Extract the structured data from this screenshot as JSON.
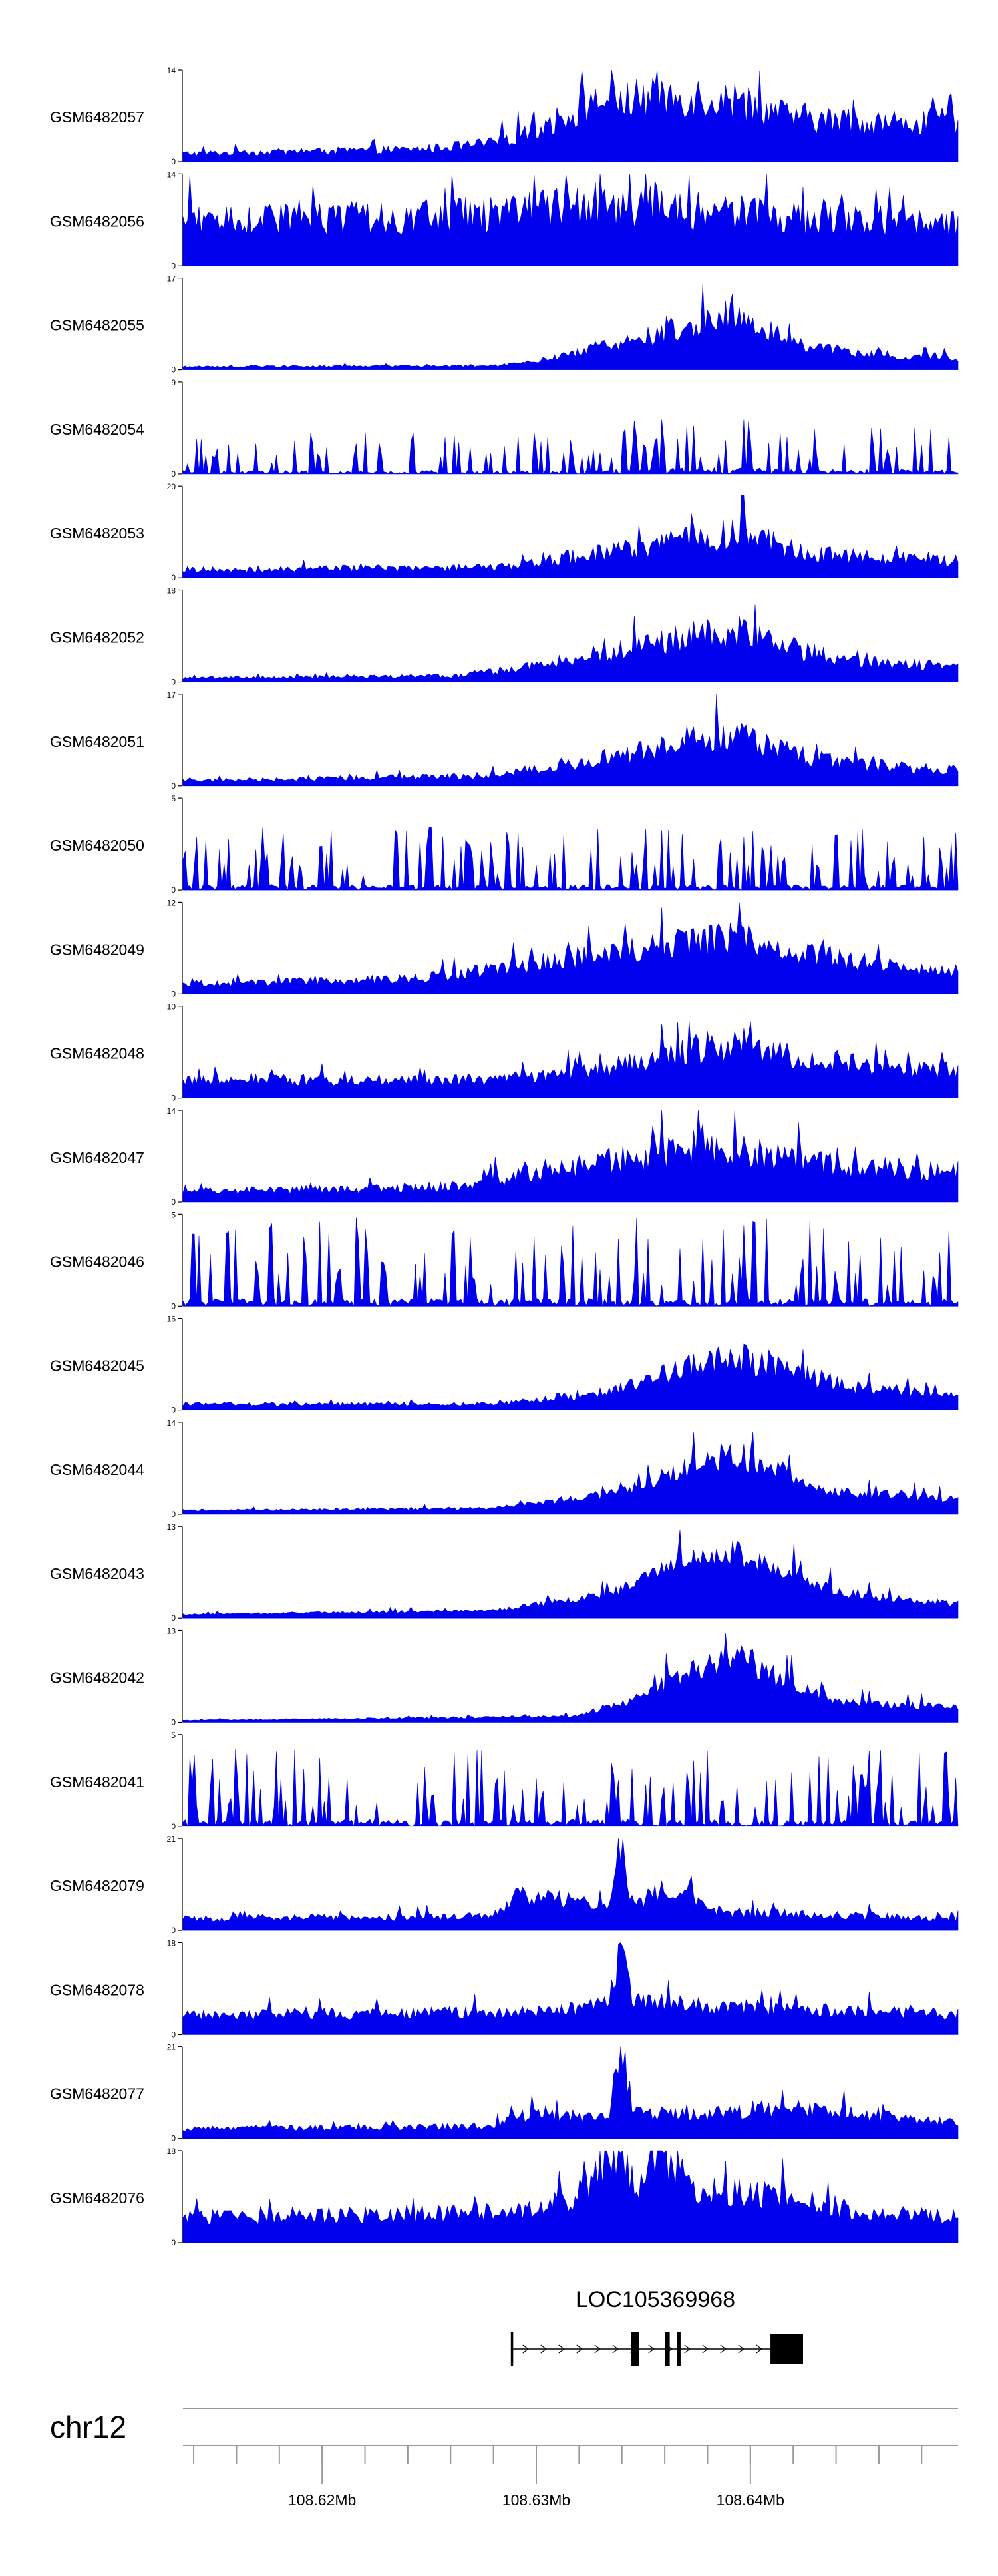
{
  "chart_data": {
    "type": "area",
    "title": "",
    "track_color": "#0000ee",
    "tracks": [
      {
        "name": "GSM6482057",
        "ymax": 14,
        "ymin": 0,
        "profile": [
          [
            0.0,
            0.08
          ],
          [
            0.15,
            0.1
          ],
          [
            0.3,
            0.12
          ],
          [
            0.4,
            0.18
          ],
          [
            0.48,
            0.4
          ],
          [
            0.52,
            0.55
          ],
          [
            0.56,
            0.6
          ],
          [
            0.6,
            0.62
          ],
          [
            0.66,
            0.65
          ],
          [
            0.72,
            0.58
          ],
          [
            0.78,
            0.45
          ],
          [
            0.84,
            0.4
          ],
          [
            0.92,
            0.38
          ],
          [
            1.0,
            0.4
          ]
        ],
        "noise": 0.55
      },
      {
        "name": "GSM6482056",
        "ymax": 14,
        "ymin": 0,
        "profile": [
          [
            0.0,
            0.45
          ],
          [
            0.2,
            0.45
          ],
          [
            0.4,
            0.5
          ],
          [
            0.55,
            0.6
          ],
          [
            0.65,
            0.55
          ],
          [
            0.8,
            0.45
          ],
          [
            1.0,
            0.4
          ]
        ],
        "noise": 0.6
      },
      {
        "name": "GSM6482055",
        "ymax": 17,
        "ymin": 0,
        "profile": [
          [
            0.0,
            0.03
          ],
          [
            0.4,
            0.04
          ],
          [
            0.45,
            0.08
          ],
          [
            0.52,
            0.2
          ],
          [
            0.6,
            0.32
          ],
          [
            0.66,
            0.45
          ],
          [
            0.7,
            0.55
          ],
          [
            0.74,
            0.45
          ],
          [
            0.8,
            0.25
          ],
          [
            0.88,
            0.15
          ],
          [
            1.0,
            0.12
          ]
        ],
        "noise": 0.45
      },
      {
        "name": "GSM6482054",
        "ymax": 9,
        "ymin": 0,
        "profile": [
          [
            0.0,
            0.15
          ],
          [
            0.5,
            0.18
          ],
          [
            0.7,
            0.3
          ],
          [
            0.8,
            0.22
          ],
          [
            1.0,
            0.18
          ]
        ],
        "noise": 1.2,
        "sparse": true
      },
      {
        "name": "GSM6482053",
        "ymax": 20,
        "ymin": 0,
        "profile": [
          [
            0.0,
            0.08
          ],
          [
            0.4,
            0.1
          ],
          [
            0.55,
            0.25
          ],
          [
            0.68,
            0.4
          ],
          [
            0.72,
            0.45
          ],
          [
            0.8,
            0.25
          ],
          [
            1.0,
            0.15
          ]
        ],
        "noise": 0.6
      },
      {
        "name": "GSM6482052",
        "ymax": 18,
        "ymin": 0,
        "profile": [
          [
            0.0,
            0.04
          ],
          [
            0.35,
            0.06
          ],
          [
            0.45,
            0.15
          ],
          [
            0.55,
            0.3
          ],
          [
            0.66,
            0.45
          ],
          [
            0.72,
            0.5
          ],
          [
            0.8,
            0.3
          ],
          [
            0.9,
            0.18
          ],
          [
            1.0,
            0.15
          ]
        ],
        "noise": 0.55
      },
      {
        "name": "GSM6482051",
        "ymax": 17,
        "ymin": 0,
        "profile": [
          [
            0.0,
            0.05
          ],
          [
            0.4,
            0.1
          ],
          [
            0.5,
            0.22
          ],
          [
            0.6,
            0.35
          ],
          [
            0.7,
            0.5
          ],
          [
            0.75,
            0.4
          ],
          [
            0.85,
            0.22
          ],
          [
            1.0,
            0.15
          ]
        ],
        "noise": 0.55
      },
      {
        "name": "GSM6482050",
        "ymax": 5,
        "ymin": 0,
        "profile": [
          [
            0.0,
            0.25
          ],
          [
            0.5,
            0.25
          ],
          [
            1.0,
            0.25
          ]
        ],
        "noise": 1.3,
        "sparse": true
      },
      {
        "name": "GSM6482049",
        "ymax": 12,
        "ymin": 0,
        "profile": [
          [
            0.0,
            0.1
          ],
          [
            0.3,
            0.15
          ],
          [
            0.45,
            0.3
          ],
          [
            0.6,
            0.45
          ],
          [
            0.7,
            0.55
          ],
          [
            0.78,
            0.45
          ],
          [
            0.9,
            0.28
          ],
          [
            1.0,
            0.22
          ]
        ],
        "noise": 0.5
      },
      {
        "name": "GSM6482048",
        "ymax": 10,
        "ymin": 0,
        "profile": [
          [
            0.0,
            0.18
          ],
          [
            0.4,
            0.18
          ],
          [
            0.55,
            0.3
          ],
          [
            0.65,
            0.45
          ],
          [
            0.72,
            0.55
          ],
          [
            0.8,
            0.4
          ],
          [
            0.9,
            0.3
          ],
          [
            1.0,
            0.28
          ]
        ],
        "noise": 0.5
      },
      {
        "name": "GSM6482047",
        "ymax": 14,
        "ymin": 0,
        "profile": [
          [
            0.0,
            0.1
          ],
          [
            0.35,
            0.15
          ],
          [
            0.45,
            0.3
          ],
          [
            0.55,
            0.4
          ],
          [
            0.66,
            0.55
          ],
          [
            0.72,
            0.5
          ],
          [
            0.85,
            0.35
          ],
          [
            1.0,
            0.3
          ]
        ],
        "noise": 0.55
      },
      {
        "name": "GSM6482046",
        "ymax": 5,
        "ymin": 0,
        "profile": [
          [
            0.0,
            0.35
          ],
          [
            0.5,
            0.35
          ],
          [
            1.0,
            0.35
          ]
        ],
        "noise": 1.0,
        "sparse": true
      },
      {
        "name": "GSM6482045",
        "ymax": 16,
        "ymin": 0,
        "profile": [
          [
            0.0,
            0.06
          ],
          [
            0.4,
            0.06
          ],
          [
            0.55,
            0.18
          ],
          [
            0.62,
            0.35
          ],
          [
            0.7,
            0.55
          ],
          [
            0.75,
            0.45
          ],
          [
            0.85,
            0.25
          ],
          [
            1.0,
            0.15
          ]
        ],
        "noise": 0.5
      },
      {
        "name": "GSM6482044",
        "ymax": 14,
        "ymin": 0,
        "profile": [
          [
            0.0,
            0.04
          ],
          [
            0.4,
            0.06
          ],
          [
            0.55,
            0.2
          ],
          [
            0.65,
            0.45
          ],
          [
            0.7,
            0.6
          ],
          [
            0.76,
            0.5
          ],
          [
            0.82,
            0.25
          ],
          [
            0.9,
            0.2
          ],
          [
            1.0,
            0.15
          ]
        ],
        "noise": 0.4
      },
      {
        "name": "GSM6482043",
        "ymax": 13,
        "ymin": 0,
        "profile": [
          [
            0.0,
            0.04
          ],
          [
            0.4,
            0.08
          ],
          [
            0.55,
            0.25
          ],
          [
            0.65,
            0.6
          ],
          [
            0.7,
            0.7
          ],
          [
            0.78,
            0.5
          ],
          [
            0.85,
            0.25
          ],
          [
            1.0,
            0.15
          ]
        ],
        "noise": 0.3
      },
      {
        "name": "GSM6482042",
        "ymax": 13,
        "ymin": 0,
        "profile": [
          [
            0.0,
            0.02
          ],
          [
            0.5,
            0.06
          ],
          [
            0.58,
            0.22
          ],
          [
            0.66,
            0.55
          ],
          [
            0.72,
            0.65
          ],
          [
            0.78,
            0.4
          ],
          [
            0.85,
            0.2
          ],
          [
            1.0,
            0.15
          ]
        ],
        "noise": 0.35
      },
      {
        "name": "GSM6482041",
        "ymax": 5,
        "ymin": 0,
        "profile": [
          [
            0.0,
            0.3
          ],
          [
            0.5,
            0.32
          ],
          [
            1.0,
            0.3
          ]
        ],
        "noise": 1.0,
        "sparse": true
      },
      {
        "name": "GSM6482079",
        "ymax": 21,
        "ymin": 0,
        "profile": [
          [
            0.0,
            0.12
          ],
          [
            0.4,
            0.14
          ],
          [
            0.43,
            0.35
          ],
          [
            0.55,
            0.25
          ],
          [
            0.565,
            0.9
          ],
          [
            0.58,
            0.25
          ],
          [
            0.62,
            0.4
          ],
          [
            0.7,
            0.18
          ],
          [
            1.0,
            0.12
          ]
        ],
        "noise": 0.45
      },
      {
        "name": "GSM6482078",
        "ymax": 18,
        "ymin": 0,
        "profile": [
          [
            0.0,
            0.2
          ],
          [
            0.45,
            0.22
          ],
          [
            0.55,
            0.3
          ],
          [
            0.565,
            0.95
          ],
          [
            0.58,
            0.35
          ],
          [
            0.65,
            0.3
          ],
          [
            0.8,
            0.25
          ],
          [
            1.0,
            0.2
          ]
        ],
        "noise": 0.45
      },
      {
        "name": "GSM6482077",
        "ymax": 21,
        "ymin": 0,
        "profile": [
          [
            0.0,
            0.1
          ],
          [
            0.4,
            0.12
          ],
          [
            0.45,
            0.25
          ],
          [
            0.55,
            0.2
          ],
          [
            0.565,
            1.0
          ],
          [
            0.58,
            0.25
          ],
          [
            0.7,
            0.25
          ],
          [
            0.8,
            0.3
          ],
          [
            1.0,
            0.15
          ]
        ],
        "noise": 0.45
      },
      {
        "name": "GSM6482076",
        "ymax": 18,
        "ymin": 0,
        "profile": [
          [
            0.0,
            0.25
          ],
          [
            0.4,
            0.3
          ],
          [
            0.5,
            0.4
          ],
          [
            0.565,
            0.95
          ],
          [
            0.585,
            0.6
          ],
          [
            0.615,
            0.95
          ],
          [
            0.66,
            0.5
          ],
          [
            0.78,
            0.45
          ],
          [
            0.88,
            0.3
          ],
          [
            1.0,
            0.25
          ]
        ],
        "noise": 0.5
      }
    ],
    "gene": {
      "name": "LOC105369968",
      "start": 0.423,
      "end": 0.8,
      "strand": "+",
      "exons": [
        [
          0.423,
          0.426
        ],
        [
          0.578,
          0.588
        ],
        [
          0.622,
          0.628
        ],
        [
          0.637,
          0.642
        ],
        [
          0.758,
          0.8
        ]
      ]
    },
    "chromosome": "chr12",
    "x_axis": {
      "region_start": 108.6135,
      "region_end": 108.6497,
      "minor_tick_step": 0.002,
      "major_ticks": [
        108.62,
        108.63,
        108.64
      ],
      "tick_labels": [
        "108.62Mb",
        "108.63Mb",
        "108.64Mb"
      ]
    }
  }
}
